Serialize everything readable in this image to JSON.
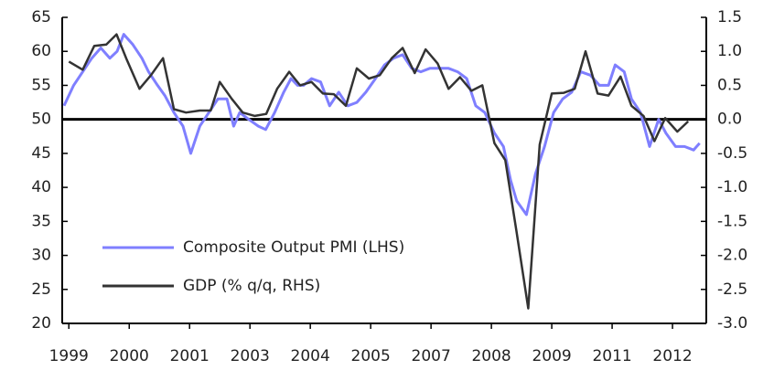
{
  "chart_data": {
    "type": "line",
    "series": [
      {
        "name": "Composite Output PMI (LHS)",
        "color": "#7f7fff",
        "axis": "y",
        "x": [
          -0.08,
          0.08,
          0.23,
          0.38,
          0.53,
          0.68,
          0.8,
          0.91,
          1.06,
          1.21,
          1.32,
          1.47,
          1.59,
          1.74,
          1.89,
          2.02,
          2.17,
          2.32,
          2.47,
          2.62,
          2.73,
          2.83,
          2.98,
          3.14,
          3.26,
          3.41,
          3.56,
          3.68,
          3.79,
          3.89,
          4.02,
          4.17,
          4.32,
          4.47,
          4.62,
          4.77,
          4.92,
          5.08,
          5.23,
          5.38,
          5.53,
          5.68,
          5.83,
          5.98,
          6.14,
          6.29,
          6.44,
          6.59,
          6.74,
          6.89,
          7.05,
          7.2,
          7.32,
          7.42,
          7.58,
          7.73,
          7.88,
          8.03,
          8.18,
          8.33,
          8.48,
          8.64,
          8.79,
          8.94,
          9.05,
          9.2,
          9.32,
          9.47,
          9.62,
          9.77,
          9.89,
          10.05,
          10.2,
          10.35,
          10.45
        ],
        "values": [
          52,
          55,
          57,
          59,
          60.5,
          59,
          60,
          62.5,
          61,
          59,
          57,
          55,
          53.5,
          51,
          49,
          45,
          49,
          51,
          53,
          53,
          49,
          51,
          50,
          49,
          48.5,
          51,
          54,
          56,
          55,
          55,
          56,
          55.5,
          52,
          54,
          52,
          52.5,
          54,
          56,
          58,
          59,
          59.5,
          57.5,
          57,
          57.5,
          57.5,
          57.5,
          57,
          56,
          52,
          51,
          48,
          46,
          41,
          38,
          36,
          42,
          46,
          51,
          53,
          54,
          57,
          56.5,
          55,
          55,
          58,
          57,
          53,
          51,
          46,
          50,
          48,
          46,
          46,
          45.5,
          46.5
        ]
      },
      {
        "name": "GDP (% q/q, RHS)",
        "color": "#333333",
        "axis": "y2",
        "x": [
          0,
          0.23,
          0.42,
          0.62,
          0.79,
          0.95,
          1.17,
          1.36,
          1.56,
          1.74,
          1.94,
          2.17,
          2.35,
          2.5,
          2.7,
          2.88,
          3.08,
          3.27,
          3.45,
          3.65,
          3.83,
          4.02,
          4.21,
          4.39,
          4.59,
          4.77,
          4.97,
          5.15,
          5.35,
          5.53,
          5.73,
          5.91,
          6.11,
          6.29,
          6.48,
          6.67,
          6.85,
          7.05,
          7.23,
          7.42,
          7.61,
          7.8,
          8,
          8.2,
          8.38,
          8.56,
          8.76,
          8.94,
          9.14,
          9.32,
          9.52,
          9.7,
          9.88,
          10.08,
          10.26
        ],
        "values": [
          0.85,
          0.73,
          1.08,
          1.1,
          1.25,
          0.9,
          0.45,
          0.65,
          0.9,
          0.15,
          0.1,
          0.13,
          0.13,
          0.55,
          0.3,
          0.1,
          0.05,
          0.08,
          0.45,
          0.7,
          0.5,
          0.55,
          0.38,
          0.37,
          0.2,
          0.75,
          0.6,
          0.65,
          0.9,
          1.05,
          0.68,
          1.03,
          0.82,
          0.45,
          0.62,
          0.42,
          0.5,
          -0.35,
          -0.6,
          -1.67,
          -2.78,
          -0.37,
          0.38,
          0.39,
          0.45,
          1.0,
          0.38,
          0.35,
          0.63,
          0.2,
          0.05,
          -0.32,
          0.02,
          -0.18,
          -0.03
        ]
      }
    ],
    "xlim": [
      -0.11,
      10.56
    ],
    "xticks": [
      {
        "value": 0,
        "label": "1999"
      },
      {
        "value": 1,
        "label": "2000"
      },
      {
        "value": 2,
        "label": "2001"
      },
      {
        "value": 3,
        "label": "2003"
      },
      {
        "value": 4,
        "label": "2004"
      },
      {
        "value": 5,
        "label": "2005"
      },
      {
        "value": 6,
        "label": "2007"
      },
      {
        "value": 7,
        "label": "2008"
      },
      {
        "value": 8,
        "label": "2009"
      },
      {
        "value": 9,
        "label": "2011"
      },
      {
        "value": 10,
        "label": "2012"
      }
    ],
    "ylim": [
      20,
      65
    ],
    "yticks": [
      20,
      25,
      30,
      35,
      40,
      45,
      50,
      55,
      60,
      65
    ],
    "y2lim": [
      -3,
      1.5
    ],
    "y2ticks": [
      {
        "value": -3,
        "label": "-3.0"
      },
      -2.5,
      {
        "value": -2,
        "label": "-2.0"
      },
      -1.5,
      {
        "value": -1,
        "label": "-1.0"
      },
      -0.5,
      {
        "value": 0,
        "label": "0.0"
      },
      0.5,
      {
        "value": 1,
        "label": "1.0"
      },
      1.5
    ],
    "hline": 50,
    "legend": "lower left"
  }
}
